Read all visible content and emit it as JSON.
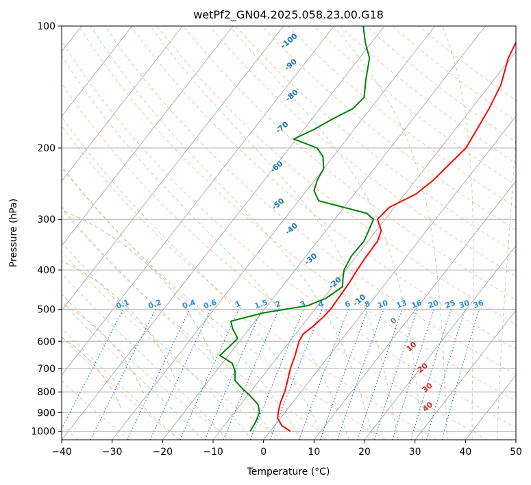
{
  "chart_data": {
    "type": "line",
    "title": "wetPf2_GN04.2025.058.23.00.G18",
    "xlabel": "Temperature (°C)",
    "ylabel": "Pressure (hPa)",
    "xlim": [
      -40,
      50
    ],
    "ylim": [
      1050,
      100
    ],
    "y_scale": "log",
    "grid": true,
    "x_ticks": [
      -40,
      -30,
      -20,
      -10,
      0,
      10,
      20,
      30,
      40,
      50
    ],
    "y_ticks": [
      1000,
      900,
      800,
      700,
      600,
      500,
      400,
      300,
      200,
      100
    ],
    "colors": {
      "temperature": "#ff0000",
      "dewpoint": "#008000",
      "isotherm": "#b0b0b0",
      "dry_adiabat": "#ff8c69",
      "moist_adiabat": "#7fbf7f",
      "mixing_ratio": "#1f77d4",
      "theta_e": "#c8b08a"
    },
    "series": [
      {
        "key": "temperature",
        "color": "#ff0000",
        "points": [
          {
            "p": 1000,
            "t": 4.0
          },
          {
            "p": 970,
            "t": 1.5
          },
          {
            "p": 930,
            "t": -0.5
          },
          {
            "p": 900,
            "t": -1.3
          },
          {
            "p": 850,
            "t": -2.4
          },
          {
            "p": 800,
            "t": -3.2
          },
          {
            "p": 750,
            "t": -4.4
          },
          {
            "p": 700,
            "t": -5.7
          },
          {
            "p": 650,
            "t": -6.8
          },
          {
            "p": 600,
            "t": -8.2
          },
          {
            "p": 575,
            "t": -8.5
          },
          {
            "p": 550,
            "t": -7.7
          },
          {
            "p": 520,
            "t": -7.1
          },
          {
            "p": 500,
            "t": -6.9
          },
          {
            "p": 460,
            "t": -7.1
          },
          {
            "p": 430,
            "t": -7.3
          },
          {
            "p": 400,
            "t": -7.7
          },
          {
            "p": 370,
            "t": -8.0
          },
          {
            "p": 340,
            "t": -8.1
          },
          {
            "p": 320,
            "t": -9.0
          },
          {
            "p": 300,
            "t": -11.5
          },
          {
            "p": 280,
            "t": -11.0
          },
          {
            "p": 260,
            "t": -7.8
          },
          {
            "p": 240,
            "t": -6.5
          },
          {
            "p": 220,
            "t": -5.8
          },
          {
            "p": 200,
            "t": -5.0
          },
          {
            "p": 180,
            "t": -5.7
          },
          {
            "p": 160,
            "t": -6.5
          },
          {
            "p": 140,
            "t": -7.8
          },
          {
            "p": 120,
            "t": -10.5
          },
          {
            "p": 110,
            "t": -11.4
          },
          {
            "p": 100,
            "t": -12.3
          }
        ]
      },
      {
        "key": "dewpoint",
        "color": "#008000",
        "points": [
          {
            "p": 1000,
            "t": -4.0
          },
          {
            "p": 950,
            "t": -4.3
          },
          {
            "p": 900,
            "t": -5.0
          },
          {
            "p": 860,
            "t": -6.5
          },
          {
            "p": 820,
            "t": -9.3
          },
          {
            "p": 780,
            "t": -12.5
          },
          {
            "p": 750,
            "t": -14.8
          },
          {
            "p": 710,
            "t": -16.3
          },
          {
            "p": 680,
            "t": -18.0
          },
          {
            "p": 650,
            "t": -21.7
          },
          {
            "p": 620,
            "t": -21.2
          },
          {
            "p": 590,
            "t": -20.8
          },
          {
            "p": 560,
            "t": -23.2
          },
          {
            "p": 535,
            "t": -24.8
          },
          {
            "p": 510,
            "t": -19.5
          },
          {
            "p": 490,
            "t": -12.0
          },
          {
            "p": 470,
            "t": -9.5
          },
          {
            "p": 440,
            "t": -8.0
          },
          {
            "p": 420,
            "t": -9.2
          },
          {
            "p": 400,
            "t": -10.3
          },
          {
            "p": 370,
            "t": -11.0
          },
          {
            "p": 340,
            "t": -10.8
          },
          {
            "p": 320,
            "t": -11.5
          },
          {
            "p": 300,
            "t": -12.3
          },
          {
            "p": 290,
            "t": -14.5
          },
          {
            "p": 270,
            "t": -26.0
          },
          {
            "p": 255,
            "t": -28.5
          },
          {
            "p": 240,
            "t": -29.5
          },
          {
            "p": 225,
            "t": -30.0
          },
          {
            "p": 210,
            "t": -32.0
          },
          {
            "p": 200,
            "t": -34.5
          },
          {
            "p": 190,
            "t": -40.5
          },
          {
            "p": 180,
            "t": -38.0
          },
          {
            "p": 170,
            "t": -36.0
          },
          {
            "p": 160,
            "t": -33.5
          },
          {
            "p": 150,
            "t": -33.0
          },
          {
            "p": 135,
            "t": -35.5
          },
          {
            "p": 120,
            "t": -38.0
          },
          {
            "p": 110,
            "t": -41.2
          },
          {
            "p": 100,
            "t": -44.2
          }
        ]
      }
    ],
    "moist_adiabat_labels": [
      {
        "text": "-100",
        "p": 110,
        "t": -56.0
      },
      {
        "text": "-90",
        "p": 126,
        "t": -52.0
      },
      {
        "text": "-80",
        "p": 150,
        "t": -47.0
      },
      {
        "text": "-70",
        "p": 180,
        "t": -44.0
      },
      {
        "text": "-60",
        "p": 225,
        "t": -39.0
      },
      {
        "text": "-50",
        "p": 278,
        "t": -33.0
      },
      {
        "text": "-40",
        "p": 320,
        "t": -26.5
      },
      {
        "text": "-30",
        "p": 380,
        "t": -18.0
      },
      {
        "text": "-20",
        "p": 435,
        "t": -9.5
      },
      {
        "text": "-10",
        "p": 480,
        "t": -2.0
      },
      {
        "text": "0",
        "p": 540,
        "t": 8.0
      },
      {
        "text": "10",
        "p": 625,
        "t": 15.5
      },
      {
        "text": "20",
        "p": 705,
        "t": 21.0
      },
      {
        "text": "30",
        "p": 790,
        "t": 25.0
      },
      {
        "text": "40",
        "p": 880,
        "t": 28.0
      }
    ],
    "mixing_ratios": [
      "0.1",
      "0.2",
      "0.4",
      "0.6",
      "1",
      "1.5",
      "2",
      "3",
      "4",
      "6",
      "8",
      "10",
      "13",
      "16",
      "20",
      "25",
      "30",
      "36"
    ]
  }
}
